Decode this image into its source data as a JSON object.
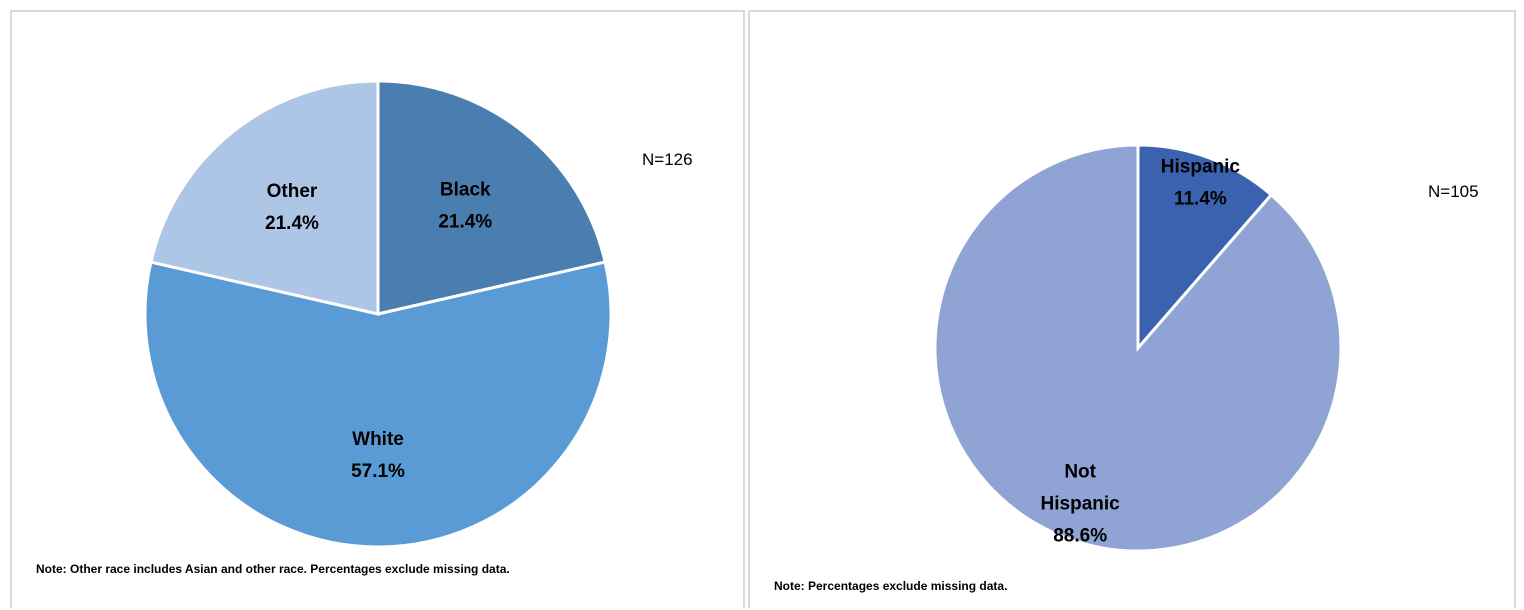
{
  "chart_data": [
    {
      "type": "pie",
      "categories": [
        "Black",
        "White",
        "Other"
      ],
      "values": [
        21.4,
        57.1,
        21.4
      ],
      "value_labels": [
        "21.4%",
        "57.1%",
        "21.4%"
      ],
      "colors": [
        "#4a7eb0",
        "#5b9bd5",
        "#aec6e6"
      ],
      "n_label": "N=126",
      "note": "Note: Other race includes Asian and other race. Percentages exclude missing data."
    },
    {
      "type": "pie",
      "categories": [
        "Hispanic",
        "Not Hispanic"
      ],
      "values": [
        11.4,
        88.6
      ],
      "value_labels": [
        "11.4%",
        "88.6%"
      ],
      "colors": [
        "#3a62ae",
        "#8fa3d5"
      ],
      "n_label": "N=105",
      "note": "Note: Percentages exclude missing data."
    }
  ]
}
